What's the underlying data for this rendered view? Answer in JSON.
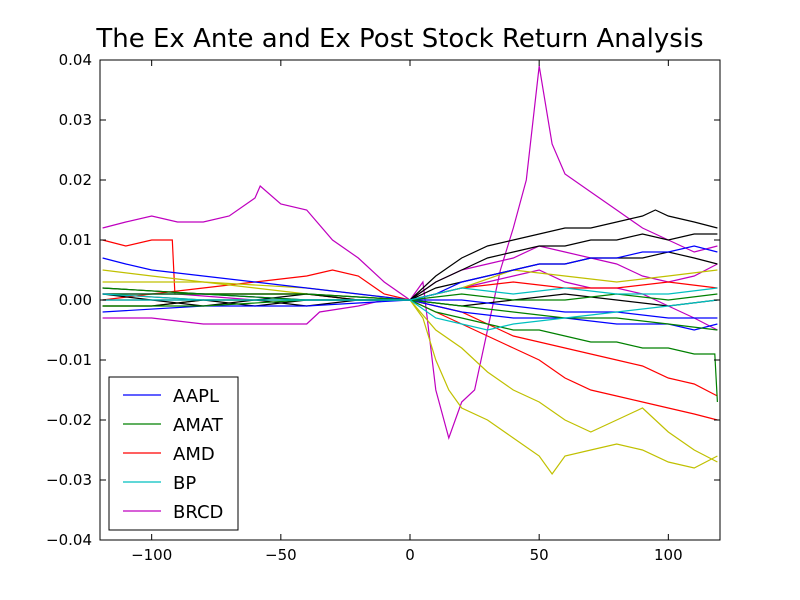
{
  "chart_data": {
    "type": "line",
    "title": "The Ex Ante and Ex Post Stock Return Analysis",
    "xlabel": "",
    "ylabel": "",
    "xlim": [
      -120,
      120
    ],
    "ylim": [
      -0.04,
      0.04
    ],
    "x_ticks": [
      -100,
      -50,
      0,
      50,
      100
    ],
    "x_tick_labels": [
      "−100",
      "−50",
      "0",
      "50",
      "100"
    ],
    "y_ticks": [
      -0.04,
      -0.03,
      -0.02,
      -0.01,
      0.0,
      0.01,
      0.02,
      0.03,
      0.04
    ],
    "y_tick_labels": [
      "−0.04",
      "−0.03",
      "−0.02",
      "−0.01",
      "0.00",
      "0.01",
      "0.02",
      "0.03",
      "0.04"
    ],
    "grid": false,
    "legend": {
      "position": "lower-left",
      "entries": [
        {
          "label": "AAPL",
          "color": "#0000ff"
        },
        {
          "label": "AMAT",
          "color": "#008000"
        },
        {
          "label": "AMD",
          "color": "#ff0000"
        },
        {
          "label": "BP",
          "color": "#00bfbf"
        },
        {
          "label": "BRCD",
          "color": "#bf00bf"
        }
      ]
    },
    "series": [
      {
        "color": "#bf00bf",
        "x": [
          -119,
          -110,
          -100,
          -90,
          -80,
          -70,
          -60,
          -58,
          -50,
          -40,
          -30,
          -20,
          -10,
          0,
          5,
          10,
          15,
          20,
          25,
          30,
          35,
          40,
          45,
          50,
          55,
          60,
          70,
          80,
          90,
          100,
          110,
          119
        ],
        "y": [
          0.012,
          0.013,
          0.014,
          0.013,
          0.013,
          0.014,
          0.017,
          0.019,
          0.016,
          0.015,
          0.01,
          0.007,
          0.003,
          0.0,
          0.003,
          -0.015,
          -0.023,
          -0.017,
          -0.015,
          -0.005,
          0.005,
          0.012,
          0.02,
          0.039,
          0.026,
          0.021,
          0.018,
          0.015,
          0.012,
          0.01,
          0.008,
          0.009
        ]
      },
      {
        "color": "#bf00bf",
        "x": [
          -119,
          -100,
          -80,
          -60,
          -40,
          -35,
          -20,
          -10,
          0,
          10,
          20,
          30,
          40,
          50,
          60,
          70,
          80,
          90,
          100,
          110,
          119
        ],
        "y": [
          -0.003,
          -0.003,
          -0.004,
          -0.004,
          -0.004,
          -0.002,
          -0.001,
          0.0,
          0.0,
          0.001,
          0.002,
          0.003,
          0.004,
          0.005,
          0.003,
          0.002,
          0.002,
          0.001,
          -0.001,
          -0.003,
          -0.005
        ]
      },
      {
        "color": "#bf00bf",
        "x": [
          -119,
          -90,
          -60,
          -30,
          0,
          10,
          20,
          30,
          40,
          50,
          60,
          70,
          80,
          90,
          100,
          110,
          119
        ],
        "y": [
          0.001,
          0.001,
          0.0,
          0.0,
          0.0,
          0.003,
          0.005,
          0.006,
          0.007,
          0.009,
          0.008,
          0.007,
          0.006,
          0.004,
          0.003,
          0.004,
          0.006
        ]
      },
      {
        "color": "#ff0000",
        "x": [
          -119,
          -110,
          -100,
          -92,
          -91,
          -80,
          -60,
          -40,
          -20,
          0,
          10,
          20,
          30,
          40,
          50,
          60,
          70,
          80,
          90,
          100,
          110,
          119
        ],
        "y": [
          0.01,
          0.009,
          0.01,
          0.01,
          0.001,
          0.001,
          0.001,
          0.001,
          0.0,
          0.0,
          -0.002,
          -0.004,
          -0.006,
          -0.008,
          -0.01,
          -0.013,
          -0.015,
          -0.016,
          -0.017,
          -0.018,
          -0.019,
          -0.02
        ]
      },
      {
        "color": "#ff0000",
        "x": [
          -119,
          -100,
          -80,
          -60,
          -40,
          -30,
          -20,
          -10,
          0,
          10,
          20,
          30,
          40,
          50,
          60,
          70,
          80,
          90,
          100,
          110,
          119
        ],
        "y": [
          0.0,
          0.001,
          0.002,
          0.003,
          0.004,
          0.005,
          0.004,
          0.001,
          0.0,
          -0.001,
          -0.002,
          -0.004,
          -0.006,
          -0.007,
          -0.008,
          -0.009,
          -0.01,
          -0.011,
          -0.013,
          -0.014,
          -0.016
        ]
      },
      {
        "color": "#ff0000",
        "x": [
          -119,
          -80,
          -40,
          0,
          10,
          20,
          40,
          60,
          80,
          100,
          119
        ],
        "y": [
          0.001,
          0.0,
          0.0,
          0.0,
          0.001,
          0.002,
          0.003,
          0.002,
          0.002,
          0.003,
          0.002
        ]
      },
      {
        "color": "#c0c000",
        "x": [
          -119,
          -100,
          -80,
          -60,
          -40,
          -20,
          0,
          5,
          10,
          15,
          20,
          30,
          40,
          50,
          55,
          60,
          70,
          80,
          90,
          100,
          110,
          119
        ],
        "y": [
          0.005,
          0.004,
          0.003,
          0.002,
          0.001,
          0.0,
          0.0,
          -0.003,
          -0.01,
          -0.015,
          -0.018,
          -0.02,
          -0.023,
          -0.026,
          -0.029,
          -0.026,
          -0.025,
          -0.024,
          -0.025,
          -0.027,
          -0.028,
          -0.026
        ]
      },
      {
        "color": "#c0c000",
        "x": [
          -119,
          -100,
          -80,
          -60,
          -40,
          -20,
          0,
          10,
          20,
          30,
          40,
          50,
          60,
          70,
          80,
          90,
          100,
          110,
          119
        ],
        "y": [
          -0.001,
          -0.001,
          0.0,
          0.0,
          0.0,
          0.0,
          0.0,
          -0.005,
          -0.008,
          -0.012,
          -0.015,
          -0.017,
          -0.02,
          -0.022,
          -0.02,
          -0.018,
          -0.022,
          -0.025,
          -0.027
        ]
      },
      {
        "color": "#c0c000",
        "x": [
          -119,
          -80,
          -40,
          0,
          20,
          40,
          60,
          80,
          100,
          119
        ],
        "y": [
          0.003,
          0.003,
          0.002,
          0.0,
          0.002,
          0.005,
          0.004,
          0.003,
          0.004,
          0.005
        ]
      },
      {
        "color": "#000000",
        "x": [
          -119,
          -100,
          -80,
          -60,
          -40,
          -20,
          0,
          10,
          20,
          30,
          40,
          50,
          60,
          70,
          80,
          90,
          95,
          100,
          110,
          119
        ],
        "y": [
          0.001,
          0.0,
          0.0,
          -0.001,
          0.0,
          0.0,
          0.0,
          0.004,
          0.007,
          0.009,
          0.01,
          0.011,
          0.012,
          0.012,
          0.013,
          0.014,
          0.015,
          0.014,
          0.013,
          0.012
        ]
      },
      {
        "color": "#000000",
        "x": [
          -119,
          -100,
          -80,
          -60,
          -40,
          -20,
          0,
          10,
          20,
          30,
          40,
          50,
          60,
          70,
          80,
          90,
          100,
          110,
          119
        ],
        "y": [
          -0.001,
          -0.001,
          0.0,
          0.0,
          0.001,
          0.0,
          0.0,
          0.003,
          0.005,
          0.007,
          0.008,
          0.009,
          0.009,
          0.01,
          0.01,
          0.011,
          0.01,
          0.011,
          0.011
        ]
      },
      {
        "color": "#000000",
        "x": [
          -119,
          -100,
          -80,
          -60,
          -40,
          -20,
          0,
          10,
          20,
          30,
          40,
          50,
          60,
          70,
          80,
          90,
          100,
          110,
          119
        ],
        "y": [
          0.0,
          0.0,
          -0.001,
          0.0,
          -0.001,
          0.0,
          0.0,
          0.002,
          0.003,
          0.004,
          0.005,
          0.006,
          0.006,
          0.007,
          0.007,
          0.007,
          0.008,
          0.007,
          0.006
        ]
      },
      {
        "color": "#000000",
        "x": [
          -119,
          -80,
          -40,
          0,
          20,
          40,
          60,
          80,
          100,
          119
        ],
        "y": [
          0.002,
          0.001,
          0.001,
          0.0,
          -0.001,
          0.0,
          0.001,
          0.0,
          -0.001,
          0.0
        ]
      },
      {
        "color": "#0000ff",
        "x": [
          -119,
          -110,
          -100,
          -80,
          -60,
          -40,
          -20,
          0,
          10,
          20,
          30,
          40,
          50,
          60,
          70,
          80,
          90,
          100,
          110,
          119
        ],
        "y": [
          0.007,
          0.006,
          0.005,
          0.004,
          0.003,
          0.002,
          0.001,
          0.0,
          0.001,
          0.003,
          0.004,
          0.005,
          0.006,
          0.006,
          0.007,
          0.007,
          0.008,
          0.008,
          0.009,
          0.008
        ]
      },
      {
        "color": "#0000ff",
        "x": [
          -119,
          -80,
          -40,
          0,
          20,
          40,
          60,
          80,
          100,
          110,
          119
        ],
        "y": [
          -0.002,
          -0.001,
          -0.001,
          0.0,
          -0.002,
          -0.003,
          -0.003,
          -0.004,
          -0.004,
          -0.005,
          -0.004
        ]
      },
      {
        "color": "#0000ff",
        "x": [
          -119,
          -80,
          -40,
          0,
          20,
          40,
          60,
          80,
          100,
          119
        ],
        "y": [
          0.001,
          0.001,
          0.0,
          0.0,
          0.0,
          -0.001,
          -0.002,
          -0.002,
          -0.003,
          -0.003
        ]
      },
      {
        "color": "#008000",
        "x": [
          -119,
          -80,
          -40,
          0,
          10,
          20,
          30,
          40,
          50,
          60,
          70,
          80,
          90,
          100,
          110,
          118,
          119
        ],
        "y": [
          0.001,
          0.001,
          0.0,
          0.0,
          -0.002,
          -0.003,
          -0.004,
          -0.005,
          -0.005,
          -0.006,
          -0.007,
          -0.007,
          -0.008,
          -0.008,
          -0.009,
          -0.009,
          -0.017
        ]
      },
      {
        "color": "#008000",
        "x": [
          -119,
          -80,
          -40,
          0,
          20,
          40,
          60,
          80,
          100,
          119
        ],
        "y": [
          -0.001,
          -0.001,
          0.0,
          0.0,
          -0.001,
          -0.002,
          -0.003,
          -0.003,
          -0.004,
          -0.005
        ]
      },
      {
        "color": "#008000",
        "x": [
          -119,
          -80,
          -40,
          0,
          20,
          40,
          60,
          80,
          100,
          119
        ],
        "y": [
          0.002,
          0.001,
          0.001,
          0.0,
          0.001,
          0.0,
          0.0,
          0.001,
          0.0,
          0.001
        ]
      },
      {
        "color": "#00bfbf",
        "x": [
          -119,
          -80,
          -40,
          0,
          10,
          20,
          30,
          40,
          60,
          80,
          100,
          119
        ],
        "y": [
          0.0,
          0.0,
          0.0,
          0.0,
          -0.003,
          -0.004,
          -0.005,
          -0.004,
          -0.003,
          -0.002,
          -0.001,
          0.0
        ]
      },
      {
        "color": "#00bfbf",
        "x": [
          -119,
          -80,
          -40,
          0,
          20,
          40,
          60,
          80,
          100,
          119
        ],
        "y": [
          0.001,
          0.0,
          0.0,
          0.0,
          0.002,
          0.001,
          0.002,
          0.001,
          0.001,
          0.002
        ]
      }
    ]
  }
}
